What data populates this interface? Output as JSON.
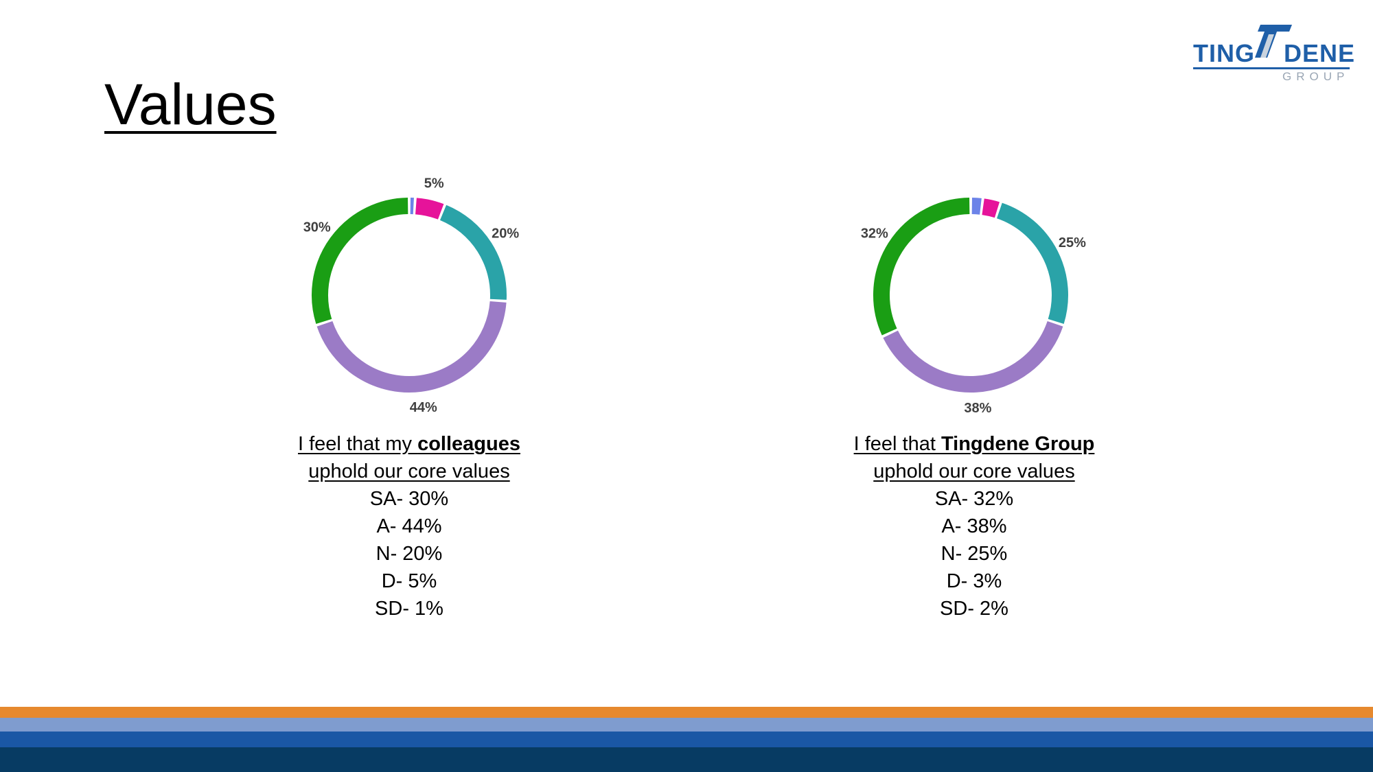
{
  "slide": {
    "title": "Values"
  },
  "logo": {
    "word_left": "TING",
    "word_right": "DENE",
    "sub": "GROUP",
    "color": "#1f5fa8"
  },
  "colors": {
    "strongly_agree": "#1a9e14",
    "agree": "#9b7bc6",
    "neutral": "#2aa3a8",
    "disagree": "#e6139a",
    "strongly_disagree": "#6c83e8"
  },
  "chart_data": [
    {
      "type": "pie",
      "categories": [
        "SD",
        "D",
        "N",
        "A",
        "SA"
      ],
      "values": [
        1,
        5,
        20,
        44,
        30
      ],
      "labels": [
        "",
        "5%",
        "20%",
        "44%",
        "30%"
      ],
      "caption": {
        "pre": "I feel that my ",
        "bold": "colleagues",
        "line2": "uphold our core values"
      },
      "stats": [
        "SA- 30%",
        "A- 44%",
        "N- 20%",
        "D- 5%",
        "SD- 1%"
      ]
    },
    {
      "type": "pie",
      "categories": [
        "SD",
        "D",
        "N",
        "A",
        "SA"
      ],
      "values": [
        2,
        3,
        25,
        38,
        32
      ],
      "labels": [
        "",
        "",
        "25%",
        "38%",
        "32%"
      ],
      "caption": {
        "pre": "I feel that ",
        "bold": "Tingdene Group",
        "line2": "uphold our core values"
      },
      "stats": [
        "SA- 32%",
        "A- 38%",
        "N- 25%",
        "D- 3%",
        "SD- 2%"
      ]
    }
  ],
  "footer": {
    "stripe_colors": [
      "#e6892e",
      "#7f9ccf",
      "#1a57a5",
      "#073b63"
    ]
  }
}
